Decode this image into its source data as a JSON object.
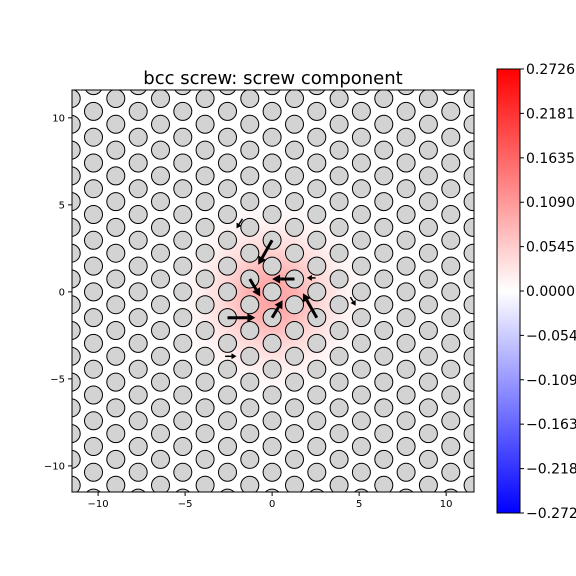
{
  "chart_data": {
    "type": "heatmap",
    "title": "bcc screw: screw component",
    "xlabel": "",
    "ylabel": "",
    "xlim": [
      -11.5,
      11.6
    ],
    "ylim": [
      -11.5,
      11.6
    ],
    "x_ticks": [
      -10,
      -5,
      0,
      5,
      10
    ],
    "y_ticks": [
      -10,
      -5,
      0,
      5,
      10
    ],
    "x_tick_labels": [
      "−10",
      "−5",
      "0",
      "5",
      "10"
    ],
    "y_tick_labels": [
      "−10",
      "−5",
      "0",
      "5",
      "10"
    ],
    "grid": false,
    "colormap": "bwr",
    "colorbar": {
      "range": [
        -0.2726,
        0.2726
      ],
      "ticks": [
        0.2726,
        0.2181,
        0.1635,
        0.109,
        0.0545,
        0.0,
        -0.0545,
        -0.109,
        -0.1635,
        -0.2181,
        -0.2726
      ],
      "tick_labels": [
        "0.2726",
        "0.2181",
        "0.1635",
        "0.1090",
        "0.0545",
        "0.0000",
        "−0.0545",
        "−0.1090",
        "−0.1635",
        "−0.2181",
        "−0.2726"
      ],
      "colors": {
        "max": "#ff0000",
        "mid": "#ffffff",
        "min": "#0000ff"
      }
    },
    "atom_lattice": {
      "a1": [
        2.566,
        0.0
      ],
      "a2": [
        1.283,
        2.222
      ],
      "sublattices": [
        [
          0.0,
          0.0
        ],
        [
          1.283,
          0.741
        ],
        [
          0.0,
          1.482
        ]
      ],
      "atom_color": "#d3d3d3",
      "edge_color": "#000000"
    },
    "strain_field": {
      "peak": 0.2726,
      "center": [
        0.0,
        -0.3
      ],
      "width": 2.6
    },
    "arrows": [
      {
        "x": 1.283,
        "y": 0.741,
        "dx": -1.283,
        "dy": 0.0
      },
      {
        "x": 0.0,
        "y": -1.482,
        "dx": 0.6,
        "dy": 1.0
      },
      {
        "x": -1.283,
        "y": 0.741,
        "dx": 0.6,
        "dy": -1.0
      },
      {
        "x": 0.0,
        "y": 2.963,
        "dx": -0.8,
        "dy": -1.4
      },
      {
        "x": -2.566,
        "y": -1.482,
        "dx": 1.6,
        "dy": 0.0
      },
      {
        "x": 2.566,
        "y": -1.482,
        "dx": -0.8,
        "dy": 1.4
      },
      {
        "x": -1.7,
        "y": 4.2,
        "dx": -0.35,
        "dy": -0.55
      },
      {
        "x": -2.7,
        "y": -3.7,
        "dx": 0.65,
        "dy": 0.0
      },
      {
        "x": 2.5,
        "y": 0.8,
        "dx": -0.5,
        "dy": 0.0
      },
      {
        "x": 4.5,
        "y": -0.3,
        "dx": 0.3,
        "dy": -0.5
      }
    ]
  }
}
